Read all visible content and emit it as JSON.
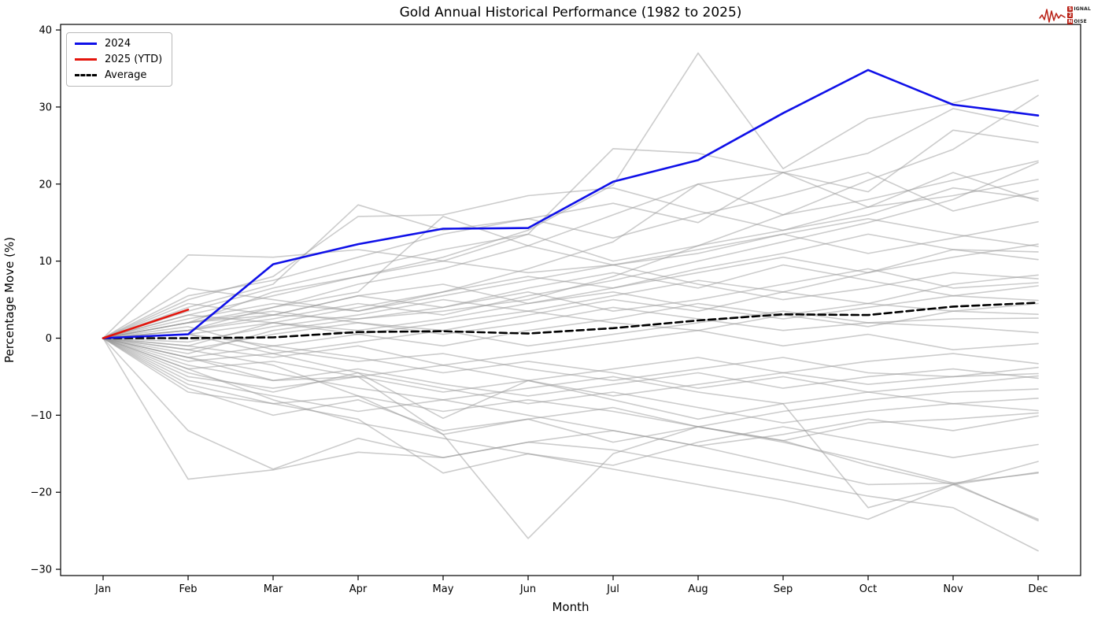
{
  "header": {
    "title": "Gold Annual Historical Performance (1982 to 2025)"
  },
  "logo": {
    "name": "Signal 2 Noise",
    "line1_initial": "S",
    "line1_rest": "IGNAL",
    "line2_initial": "2",
    "line2_rest": "",
    "line3_initial": "N",
    "line3_rest": "OISE",
    "accent_color": "#b92015"
  },
  "chart_data": {
    "type": "line",
    "title": "Gold Annual Historical Performance (1982 to 2025)",
    "xlabel": "Month",
    "ylabel": "Percentage Move (%)",
    "months": [
      "Jan",
      "Feb",
      "Mar",
      "Apr",
      "May",
      "Jun",
      "Jul",
      "Aug",
      "Sep",
      "Oct",
      "Nov",
      "Dec"
    ],
    "yticks": [
      -30,
      -20,
      -10,
      0,
      10,
      20,
      30,
      40
    ],
    "ylim": [
      -30.8,
      40.8
    ],
    "grid": false,
    "legend_position": "upper-left",
    "legend": [
      {
        "label": "2024",
        "color": "#0f10e8",
        "style": "solid"
      },
      {
        "label": "2025 (YTD)",
        "color": "#e4150c",
        "style": "solid"
      },
      {
        "label": "Average",
        "color": "#000000",
        "style": "dashed"
      }
    ],
    "main_series": [
      {
        "name": "2024",
        "color": "#0f10e8",
        "style": "solid",
        "width": 2.6,
        "values": [
          0,
          0.5,
          9.6,
          12.2,
          14.2,
          14.3,
          20.3,
          23.1,
          29.2,
          34.8,
          30.3,
          28.9
        ]
      },
      {
        "name": "2025 (YTD)",
        "color": "#e4150c",
        "style": "solid",
        "width": 2.6,
        "values": [
          0,
          3.7
        ]
      },
      {
        "name": "Average",
        "color": "#000000",
        "style": "dashed",
        "width": 2.6,
        "values": [
          0,
          0,
          0.1,
          0.8,
          0.9,
          0.6,
          1.3,
          2.3,
          3.1,
          3.0,
          4.1,
          4.6
        ]
      }
    ],
    "historical_note": "Gray lines are individual unlabeled years 1982-2023; monthly values estimated from plot",
    "historical_color": "#9a9a9a",
    "historical_opacity": 0.5,
    "historical_values": [
      [
        0,
        2,
        3,
        2.5,
        3.5,
        5,
        8,
        12,
        16,
        20.5,
        24.5,
        31.5
      ],
      [
        0,
        3,
        5.5,
        8,
        10.5,
        14,
        19.9,
        37,
        22,
        28.5,
        30.5,
        33.5
      ],
      [
        0,
        1,
        4,
        7,
        9,
        12,
        16,
        20,
        21.5,
        24,
        29.8,
        27.5
      ],
      [
        0,
        -1,
        2,
        4,
        6,
        9,
        12.5,
        20,
        16,
        18,
        20.5,
        23
      ],
      [
        0,
        2,
        6,
        8,
        10,
        13.5,
        24.6,
        24,
        21.5,
        17,
        18.5,
        20.6
      ],
      [
        0,
        4,
        7,
        17.3,
        14,
        15.5,
        13,
        16,
        18.5,
        21.5,
        16.5,
        19.1
      ],
      [
        0,
        5,
        8,
        15.8,
        16,
        18.5,
        19.5,
        16.5,
        14,
        16,
        19.5,
        18.1
      ],
      [
        0,
        2,
        4,
        6,
        15.8,
        12,
        9.5,
        11,
        13.5,
        11,
        13,
        15.1
      ],
      [
        0,
        10.8,
        10.5,
        11.5,
        10,
        8.5,
        9.5,
        11.5,
        13.5,
        15.5,
        13.5,
        11.9
      ],
      [
        0,
        1,
        3,
        5.5,
        7,
        4.5,
        6.5,
        8.5,
        10.5,
        8.5,
        11.5,
        11.2
      ],
      [
        0,
        6.5,
        5,
        3.5,
        5.5,
        7.5,
        9.5,
        7,
        5,
        6.5,
        8.5,
        7.7
      ],
      [
        0,
        -2,
        1,
        2.5,
        4,
        6,
        3.5,
        5,
        7,
        9,
        6.5,
        7.2
      ],
      [
        0,
        3,
        2,
        1,
        2.5,
        4.5,
        6,
        4,
        2.5,
        4,
        5.5,
        4.9
      ],
      [
        0,
        0.5,
        -1,
        0.5,
        2,
        3.5,
        2,
        1,
        3,
        4.5,
        3.5,
        3.1
      ],
      [
        0,
        -3,
        -2,
        -0.5,
        1,
        -1,
        0.5,
        2,
        3.5,
        2,
        2.5,
        2.6
      ],
      [
        0,
        2,
        3.5,
        2,
        0.5,
        2,
        4,
        2.5,
        1,
        2,
        1.5,
        0.7
      ],
      [
        0,
        -1,
        -2.5,
        -1,
        -3.5,
        -2,
        -0.5,
        1,
        -1,
        0.5,
        -1.5,
        -0.7
      ],
      [
        0,
        -4,
        -3,
        -5,
        -3.5,
        -5.5,
        -4,
        -2.5,
        -4.5,
        -3,
        -2,
        -3.3
      ],
      [
        0,
        1.5,
        -1.5,
        -3,
        -2,
        -4,
        -5.5,
        -4,
        -2.5,
        -4.5,
        -5,
        -3.8
      ],
      [
        0,
        -5,
        -6.5,
        -5,
        -7,
        -5.5,
        -7.5,
        -6,
        -4.5,
        -6,
        -5,
        -4.6
      ],
      [
        0,
        -2.5,
        -4.5,
        -6.5,
        -8,
        -6.5,
        -5,
        -7,
        -8.5,
        -7,
        -6,
        -4.9
      ],
      [
        0,
        -6,
        -8.5,
        -7.5,
        -9.5,
        -8,
        -9.5,
        -11.5,
        -9.5,
        -8,
        -7,
        -6.6
      ],
      [
        0,
        0.5,
        -2,
        -4.5,
        -6.5,
        -8.5,
        -7,
        -9,
        -11,
        -9.5,
        -8.5,
        -9.4
      ],
      [
        0,
        -1.5,
        -3.5,
        -7.5,
        -12.5,
        -10.5,
        -13.5,
        -11.5,
        -13.3,
        -11,
        -10.5,
        -9.7
      ],
      [
        0,
        -4.5,
        -7,
        -4.5,
        -10.4,
        -5.5,
        -8,
        -10.5,
        -8.5,
        -22,
        -19,
        -16
      ],
      [
        0,
        -2.5,
        -5.5,
        -5,
        -12.5,
        -26,
        -15,
        -11.5,
        -13.3,
        -16.5,
        -19,
        -17.4
      ],
      [
        0,
        -4,
        -8,
        -11,
        -13,
        -15,
        -17,
        -19,
        -21,
        -23.5,
        -19,
        -23.5
      ],
      [
        0,
        -18.3,
        -17.1,
        -14.8,
        -15.5,
        -13.5,
        -14.5,
        -16.5,
        -18.5,
        -20.5,
        -22,
        -27.6
      ],
      [
        0,
        -12,
        -17,
        -13,
        -15.5,
        -13.5,
        -12,
        -14,
        -16.5,
        -19,
        -18.8,
        -23.7
      ],
      [
        0,
        -6.5,
        -10,
        -8,
        -12,
        -10.5,
        -9,
        -11.5,
        -13.5,
        -16,
        -18.8,
        -17.5
      ],
      [
        0,
        1,
        2.5,
        4.5,
        3,
        5.5,
        7.5,
        10,
        12.5,
        15,
        18,
        22.8
      ],
      [
        0,
        -0.5,
        1.5,
        3,
        5,
        3.5,
        5.5,
        7.5,
        6,
        8.5,
        10.5,
        12.2
      ],
      [
        0,
        2.5,
        4.5,
        3.5,
        6,
        8,
        6.5,
        9,
        11,
        13.5,
        11.5,
        10.2
      ],
      [
        0,
        -1.5,
        0.5,
        2,
        1,
        3,
        5,
        3.5,
        6,
        4.5,
        7,
        8.2
      ],
      [
        0,
        3.5,
        6.5,
        9,
        11.5,
        13.5,
        10,
        12,
        14,
        17,
        21.5,
        17.8
      ],
      [
        0,
        -3.5,
        -5.5,
        -4,
        -6,
        -7.5,
        -6,
        -4.5,
        -6.5,
        -5,
        -4,
        -5.2
      ],
      [
        0,
        -5.5,
        -7.5,
        -9.5,
        -8,
        -10,
        -12,
        -14,
        -12.5,
        -10.5,
        -12,
        -10.1
      ],
      [
        0,
        0.5,
        2,
        0.5,
        -1,
        1,
        2.5,
        4.5,
        3,
        1.5,
        3.5,
        4.5
      ],
      [
        0,
        -2.5,
        -1,
        -2.5,
        -4.5,
        -3,
        -4.5,
        -6.5,
        -5,
        -7,
        -8.5,
        -7.8
      ],
      [
        0,
        4.5,
        3,
        5.5,
        4,
        6.5,
        8.5,
        6.5,
        9.5,
        7.5,
        5.5,
        6.8
      ],
      [
        0,
        -7,
        -8.5,
        -10.5,
        -17.5,
        -15,
        -16.5,
        -13.5,
        -11.5,
        -13.5,
        -15.5,
        -13.8
      ],
      [
        0,
        5.5,
        7.5,
        10.5,
        13.5,
        15.5,
        17.5,
        15,
        21.5,
        19,
        27,
        25.4
      ]
    ]
  }
}
